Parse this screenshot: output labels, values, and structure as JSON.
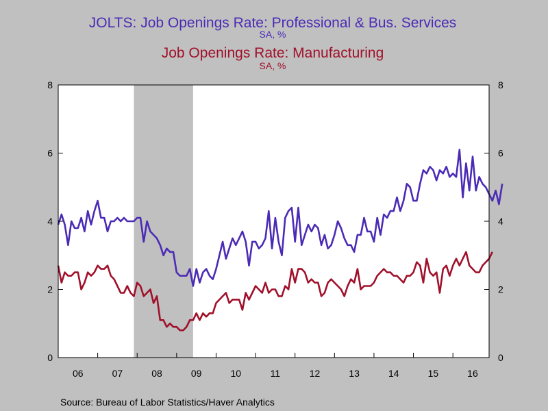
{
  "chart_data": {
    "type": "line",
    "title": "JOLTS: Job Openings Rate: Professional & Bus. Services",
    "subtitle": "SA, %",
    "title2": "Job Openings Rate: Manufacturing",
    "subtitle2": "SA, %",
    "source": "Source:  Bureau of Labor Statistics/Haver Analytics",
    "ylim": [
      0,
      8
    ],
    "yticks": [
      0,
      2,
      4,
      6,
      8
    ],
    "xlim": [
      2006.0,
      2016.917
    ],
    "xticks": [
      {
        "label": "06",
        "pos": 2006.5
      },
      {
        "label": "07",
        "pos": 2007.5
      },
      {
        "label": "08",
        "pos": 2008.5
      },
      {
        "label": "09",
        "pos": 2009.5
      },
      {
        "label": "10",
        "pos": 2010.5
      },
      {
        "label": "11",
        "pos": 2011.5
      },
      {
        "label": "12",
        "pos": 2012.5
      },
      {
        "label": "13",
        "pos": 2013.5
      },
      {
        "label": "14",
        "pos": 2014.5
      },
      {
        "label": "15",
        "pos": 2015.5
      },
      {
        "label": "16",
        "pos": 2016.5
      }
    ],
    "recession": {
      "start": 2007.917,
      "end": 2009.417,
      "color": "#c0c0c0"
    },
    "x_start": 2006.0,
    "x_step_months": 1,
    "series": [
      {
        "name": "JOLTS: Job Openings Rate: Professional & Bus. Services",
        "color": "#4b2bb5",
        "values": [
          3.9,
          4.2,
          3.9,
          3.3,
          4.0,
          3.8,
          3.8,
          4.1,
          3.7,
          4.3,
          3.9,
          4.3,
          4.6,
          4.1,
          4.1,
          3.7,
          4.0,
          4.0,
          4.1,
          4.0,
          4.1,
          4.0,
          4.0,
          4.0,
          4.1,
          4.1,
          3.4,
          4.0,
          3.7,
          3.6,
          3.5,
          3.3,
          3.0,
          3.2,
          3.1,
          3.1,
          2.5,
          2.4,
          2.4,
          2.4,
          2.6,
          2.1,
          2.6,
          2.2,
          2.5,
          2.6,
          2.4,
          2.3,
          2.6,
          3.0,
          3.4,
          2.9,
          3.2,
          3.5,
          3.3,
          3.5,
          3.7,
          3.4,
          2.7,
          3.4,
          3.4,
          3.2,
          3.3,
          3.5,
          4.3,
          3.2,
          4.1,
          3.4,
          3.0,
          4.1,
          4.3,
          4.4,
          3.4,
          4.4,
          3.3,
          3.6,
          3.9,
          3.7,
          3.9,
          3.8,
          3.3,
          3.6,
          3.2,
          3.3,
          3.6,
          4.0,
          3.8,
          3.5,
          3.3,
          3.3,
          3.1,
          3.6,
          3.6,
          4.1,
          3.7,
          3.7,
          3.4,
          4.1,
          3.6,
          4.2,
          4.1,
          4.3,
          4.3,
          4.7,
          4.3,
          4.6,
          5.1,
          5.0,
          4.6,
          4.6,
          5.1,
          5.5,
          5.4,
          5.6,
          5.5,
          5.2,
          5.5,
          5.4,
          5.6,
          5.3,
          5.4,
          5.3,
          6.1,
          4.7,
          5.7,
          4.9,
          5.9,
          4.9,
          5.3,
          5.1,
          5.0,
          4.8,
          4.6,
          4.9,
          4.5,
          5.1
        ]
      },
      {
        "name": "Job Openings Rate: Manufacturing",
        "color": "#a0102a",
        "values": [
          2.7,
          2.2,
          2.5,
          2.4,
          2.4,
          2.5,
          2.5,
          2.0,
          2.2,
          2.5,
          2.4,
          2.5,
          2.7,
          2.6,
          2.6,
          2.7,
          2.4,
          2.3,
          2.1,
          1.9,
          1.9,
          2.1,
          1.9,
          1.8,
          2.2,
          2.1,
          1.8,
          1.9,
          2.0,
          1.6,
          1.8,
          1.1,
          1.1,
          0.9,
          1.0,
          0.9,
          0.9,
          0.8,
          0.8,
          0.9,
          1.1,
          1.1,
          1.3,
          1.1,
          1.3,
          1.2,
          1.3,
          1.3,
          1.6,
          1.7,
          1.8,
          1.9,
          1.6,
          1.7,
          1.7,
          1.7,
          1.4,
          1.9,
          1.7,
          1.9,
          2.1,
          2.0,
          1.9,
          2.2,
          1.9,
          2.0,
          2.0,
          1.8,
          1.8,
          2.1,
          2.0,
          2.6,
          2.2,
          2.6,
          2.6,
          2.5,
          2.2,
          2.3,
          2.2,
          2.2,
          1.8,
          1.9,
          2.2,
          2.3,
          2.2,
          2.1,
          2.0,
          1.8,
          2.1,
          2.3,
          2.2,
          2.6,
          2.0,
          2.1,
          2.1,
          2.1,
          2.2,
          2.4,
          2.5,
          2.6,
          2.5,
          2.5,
          2.4,
          2.4,
          2.3,
          2.2,
          2.4,
          2.4,
          2.5,
          2.8,
          2.7,
          2.2,
          2.9,
          2.5,
          2.4,
          2.5,
          1.9,
          2.6,
          2.7,
          2.4,
          2.7,
          2.9,
          2.7,
          2.9,
          3.1,
          2.7,
          2.6,
          2.5,
          2.5,
          2.7,
          2.8,
          2.9,
          3.1
        ]
      }
    ],
    "grid": false,
    "legend": "none"
  }
}
